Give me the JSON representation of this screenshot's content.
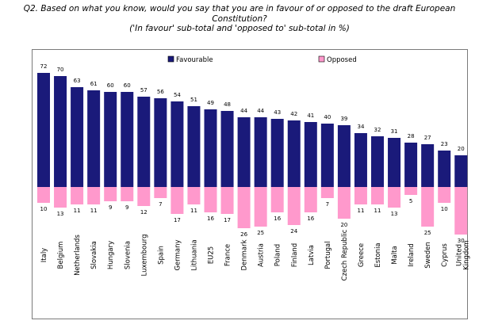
{
  "title": "Q2. Based on what you know, would you say that you are in favour of or opposed to the draft European Constitution?",
  "subtitle": "('In favour' sub-total and 'opposed to' sub-total in %)",
  "chart_data": {
    "type": "bar",
    "categories": [
      "Italy",
      "Belgium",
      "Netherlands",
      "Slovakia",
      "Hungary",
      "Slovenia",
      "Luxembourg",
      "Spain",
      "Germany",
      "Lithuania",
      "EU25",
      "France",
      "Denmark",
      "Austria",
      "Poland",
      "Finland",
      "Latvia",
      "Portugal",
      "Czech Republic",
      "Greece",
      "Estonia",
      "Malta",
      "Ireland",
      "Sweden",
      "Cyprus",
      "United Kingdom"
    ],
    "series": [
      {
        "name": "Favourable",
        "color": "#1a1a7a",
        "values": [
          72,
          70,
          63,
          61,
          60,
          60,
          57,
          56,
          54,
          51,
          49,
          48,
          44,
          44,
          43,
          42,
          41,
          40,
          39,
          34,
          32,
          31,
          28,
          27,
          23,
          20
        ]
      },
      {
        "name": "Opposed",
        "color": "#ff99cc",
        "values": [
          10,
          13,
          11,
          11,
          9,
          9,
          12,
          7,
          17,
          11,
          16,
          17,
          26,
          25,
          16,
          24,
          16,
          7,
          20,
          11,
          11,
          13,
          5,
          25,
          10,
          30
        ]
      }
    ],
    "legend_position": "top"
  }
}
